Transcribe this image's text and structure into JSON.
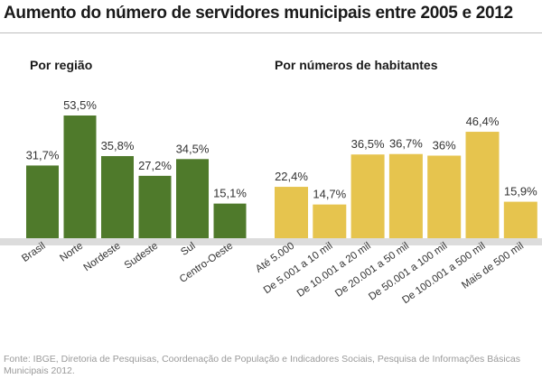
{
  "title": "Aumento do número de servidores municipais entre 2005 e 2012",
  "source": "Fonte: IBGE, Diretoria de Pesquisas, Coordenação de População e Indicadores Sociais, Pesquisa de Informações Básicas Municipais 2012.",
  "colors": {
    "region_bar": "#4f7a2b",
    "population_bar": "#e6c44e",
    "text": "#333333",
    "baseline_band": "#dcdcdc"
  },
  "chart_data": [
    {
      "type": "bar",
      "title": "Por região",
      "categories": [
        "Brasil",
        "Norte",
        "Nordeste",
        "Sudeste",
        "Sul",
        "Centro-Oeste"
      ],
      "values": [
        31.7,
        53.5,
        35.8,
        27.2,
        34.5,
        15.1
      ],
      "labels": [
        "31,7%",
        "53,5%",
        "35,8%",
        "27,2%",
        "34,5%",
        "15,1%"
      ],
      "unit": "%",
      "ylim": [
        0,
        53.5
      ]
    },
    {
      "type": "bar",
      "title": "Por números de habitantes",
      "categories": [
        "Até 5.000",
        "De 5.001 a 10 mil",
        "De 10.001 a 20 mil",
        "De 20.001 a 50 mil",
        "De 50.001 a 100 mil",
        "De 100.001 a 500 mil",
        "Mais de 500 mil"
      ],
      "values": [
        22.4,
        14.7,
        36.5,
        36.7,
        36.0,
        46.4,
        15.9
      ],
      "labels": [
        "22,4%",
        "14,7%",
        "36,5%",
        "36,7%",
        "36%",
        "46,4%",
        "15,9%"
      ],
      "unit": "%",
      "ylim": [
        0,
        53.5
      ]
    }
  ]
}
